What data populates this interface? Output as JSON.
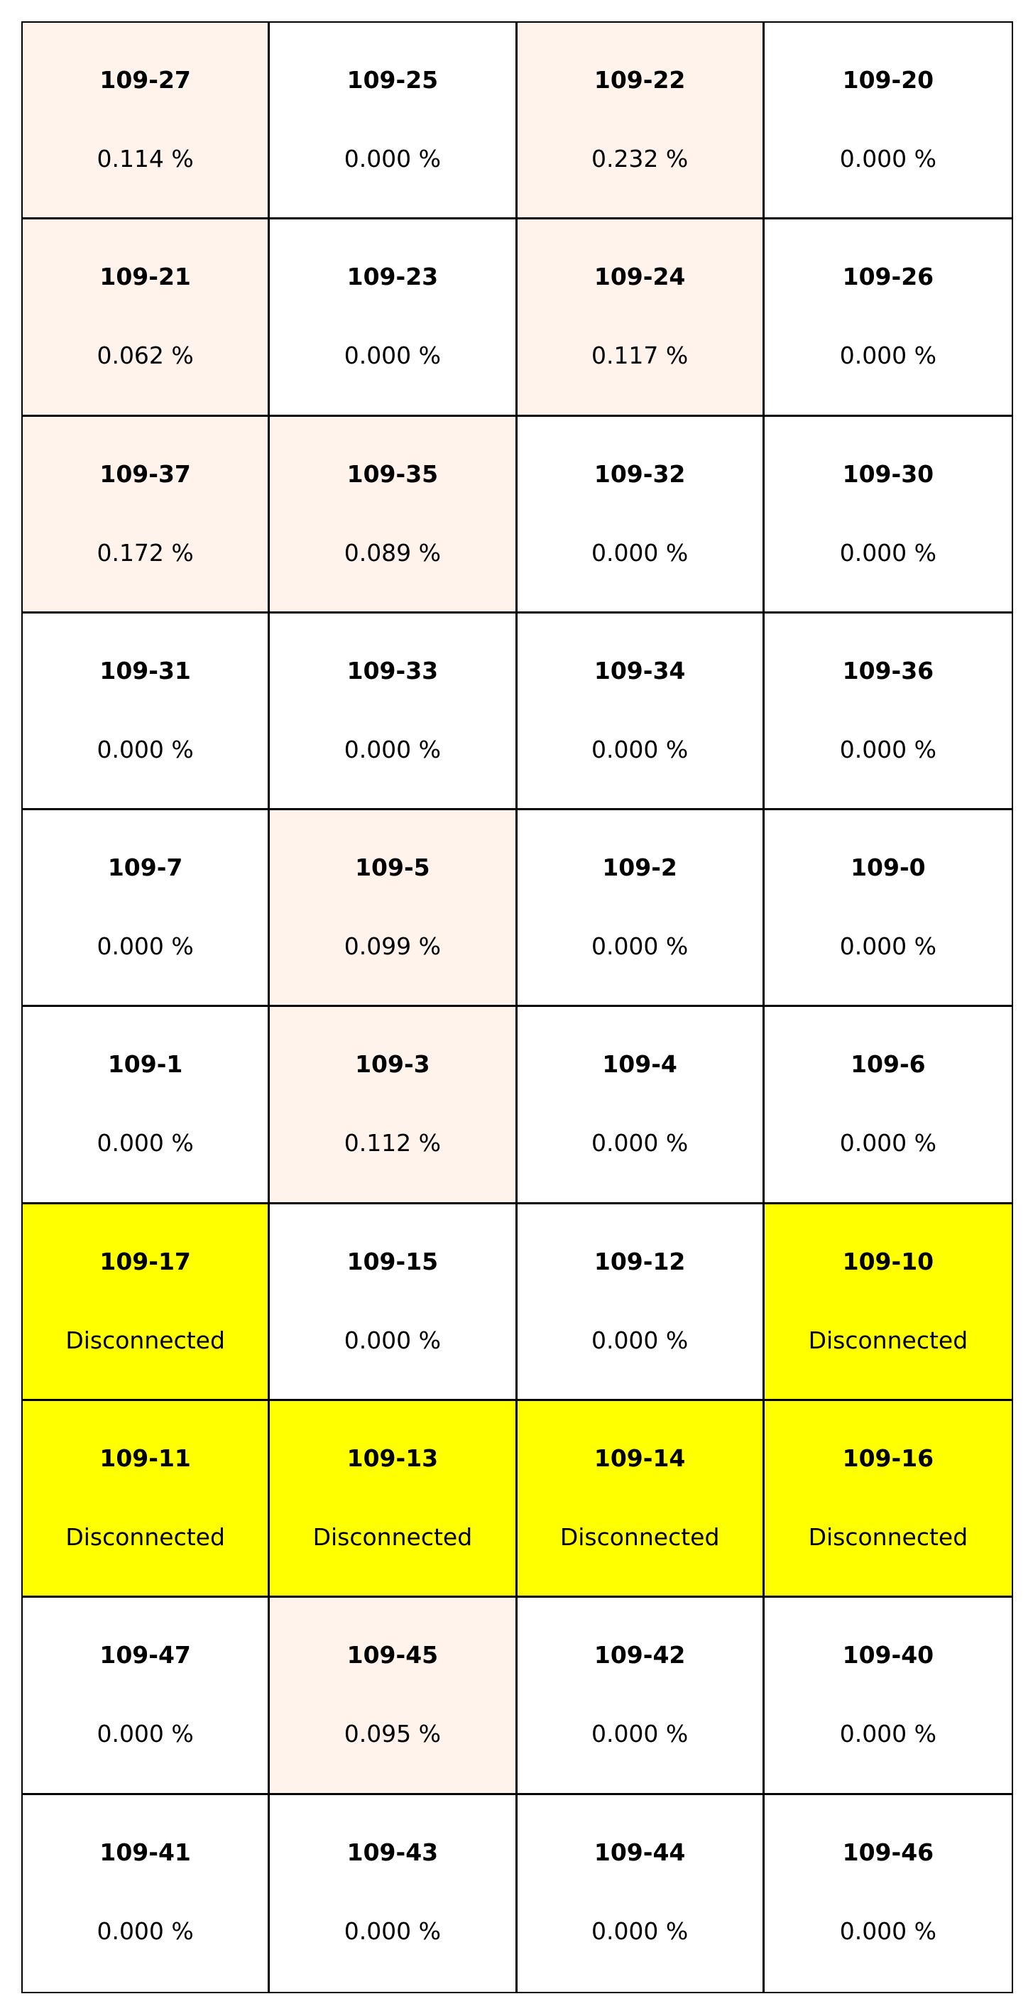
{
  "chart_data": {
    "type": "heatmap",
    "columns": 4,
    "colors": {
      "zero": "#ffffff",
      "low": "#fff3ec",
      "disconnected": "#ffff00",
      "border": "#000000",
      "text": "#000000"
    },
    "cells": [
      {
        "name": "109-27",
        "label": "0.114 %",
        "value": 0.114,
        "status": "connected"
      },
      {
        "name": "109-25",
        "label": "0.000 %",
        "value": 0.0,
        "status": "connected"
      },
      {
        "name": "109-22",
        "label": "0.232 %",
        "value": 0.232,
        "status": "connected"
      },
      {
        "name": "109-20",
        "label": "0.000 %",
        "value": 0.0,
        "status": "connected"
      },
      {
        "name": "109-21",
        "label": "0.062 %",
        "value": 0.062,
        "status": "connected"
      },
      {
        "name": "109-23",
        "label": "0.000 %",
        "value": 0.0,
        "status": "connected"
      },
      {
        "name": "109-24",
        "label": "0.117 %",
        "value": 0.117,
        "status": "connected"
      },
      {
        "name": "109-26",
        "label": "0.000 %",
        "value": 0.0,
        "status": "connected"
      },
      {
        "name": "109-37",
        "label": "0.172 %",
        "value": 0.172,
        "status": "connected"
      },
      {
        "name": "109-35",
        "label": "0.089 %",
        "value": 0.089,
        "status": "connected"
      },
      {
        "name": "109-32",
        "label": "0.000 %",
        "value": 0.0,
        "status": "connected"
      },
      {
        "name": "109-30",
        "label": "0.000 %",
        "value": 0.0,
        "status": "connected"
      },
      {
        "name": "109-31",
        "label": "0.000 %",
        "value": 0.0,
        "status": "connected"
      },
      {
        "name": "109-33",
        "label": "0.000 %",
        "value": 0.0,
        "status": "connected"
      },
      {
        "name": "109-34",
        "label": "0.000 %",
        "value": 0.0,
        "status": "connected"
      },
      {
        "name": "109-36",
        "label": "0.000 %",
        "value": 0.0,
        "status": "connected"
      },
      {
        "name": "109-7",
        "label": "0.000 %",
        "value": 0.0,
        "status": "connected"
      },
      {
        "name": "109-5",
        "label": "0.099 %",
        "value": 0.099,
        "status": "connected"
      },
      {
        "name": "109-2",
        "label": "0.000 %",
        "value": 0.0,
        "status": "connected"
      },
      {
        "name": "109-0",
        "label": "0.000 %",
        "value": 0.0,
        "status": "connected"
      },
      {
        "name": "109-1",
        "label": "0.000 %",
        "value": 0.0,
        "status": "connected"
      },
      {
        "name": "109-3",
        "label": "0.112 %",
        "value": 0.112,
        "status": "connected"
      },
      {
        "name": "109-4",
        "label": "0.000 %",
        "value": 0.0,
        "status": "connected"
      },
      {
        "name": "109-6",
        "label": "0.000 %",
        "value": 0.0,
        "status": "connected"
      },
      {
        "name": "109-17",
        "label": "Disconnected",
        "value": null,
        "status": "disconnected"
      },
      {
        "name": "109-15",
        "label": "0.000 %",
        "value": 0.0,
        "status": "connected"
      },
      {
        "name": "109-12",
        "label": "0.000 %",
        "value": 0.0,
        "status": "connected"
      },
      {
        "name": "109-10",
        "label": "Disconnected",
        "value": null,
        "status": "disconnected"
      },
      {
        "name": "109-11",
        "label": "Disconnected",
        "value": null,
        "status": "disconnected"
      },
      {
        "name": "109-13",
        "label": "Disconnected",
        "value": null,
        "status": "disconnected"
      },
      {
        "name": "109-14",
        "label": "Disconnected",
        "value": null,
        "status": "disconnected"
      },
      {
        "name": "109-16",
        "label": "Disconnected",
        "value": null,
        "status": "disconnected"
      },
      {
        "name": "109-47",
        "label": "0.000 %",
        "value": 0.0,
        "status": "connected"
      },
      {
        "name": "109-45",
        "label": "0.095 %",
        "value": 0.095,
        "status": "connected"
      },
      {
        "name": "109-42",
        "label": "0.000 %",
        "value": 0.0,
        "status": "connected"
      },
      {
        "name": "109-40",
        "label": "0.000 %",
        "value": 0.0,
        "status": "connected"
      },
      {
        "name": "109-41",
        "label": "0.000 %",
        "value": 0.0,
        "status": "connected"
      },
      {
        "name": "109-43",
        "label": "0.000 %",
        "value": 0.0,
        "status": "connected"
      },
      {
        "name": "109-44",
        "label": "0.000 %",
        "value": 0.0,
        "status": "connected"
      },
      {
        "name": "109-46",
        "label": "0.000 %",
        "value": 0.0,
        "status": "connected"
      }
    ]
  }
}
